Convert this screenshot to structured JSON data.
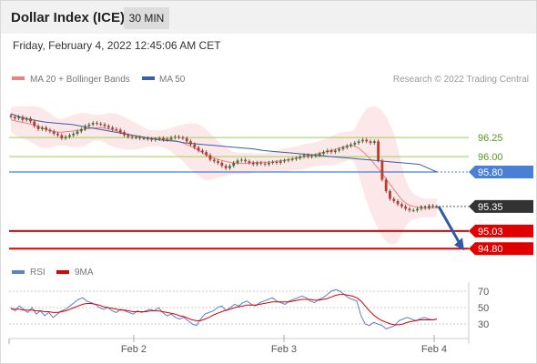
{
  "header": {
    "title": "Dollar Index (ICE)",
    "timeframe": "30 MIN"
  },
  "datetime": "Friday, February 4, 2022 12:45:06 AM CET",
  "colors": {
    "bollinger": "#f08080",
    "ma50": "#3b5ea8",
    "resistance": "#9acd55",
    "pivot": "#4a7fd6",
    "support": "#e00000",
    "price_label": "#333333",
    "arrow": "#2e5aa8",
    "rsi": "#5a7fd6",
    "rsi_ma": "#e00000",
    "candle_up": "#3a7a2a",
    "candle_down": "#c0392b"
  },
  "chart_data": [
    {
      "type": "candlestick",
      "legend": [
        "MA 20 + Bollinger Bands",
        "MA 50"
      ],
      "credit": "Research © 2022 Trading Central",
      "x_ticks": [
        "Feb 2",
        "Feb 3",
        "Feb 4"
      ],
      "levels": [
        {
          "value": 96.25,
          "label": "96.25",
          "kind": "resistance"
        },
        {
          "value": 96.0,
          "label": "96.00",
          "kind": "resistance"
        },
        {
          "value": 95.8,
          "label": "95.80",
          "kind": "pivot"
        },
        {
          "value": 95.35,
          "label": "95.35",
          "kind": "last"
        },
        {
          "value": 95.03,
          "label": "95.03",
          "kind": "support"
        },
        {
          "value": 94.8,
          "label": "94.80",
          "kind": "support"
        }
      ],
      "close": [
        96.52,
        96.5,
        96.52,
        96.48,
        96.5,
        96.46,
        96.4,
        96.36,
        96.38,
        96.35,
        96.33,
        96.3,
        96.28,
        96.24,
        96.26,
        96.28,
        96.3,
        96.33,
        96.36,
        96.4,
        96.42,
        96.44,
        96.43,
        96.42,
        96.4,
        96.38,
        96.36,
        96.35,
        96.32,
        96.28,
        96.26,
        96.25,
        96.25,
        96.24,
        96.24,
        96.23,
        96.22,
        96.23,
        96.24,
        96.22,
        96.23,
        96.25,
        96.26,
        96.25,
        96.24,
        96.2,
        96.16,
        96.12,
        96.08,
        96.06,
        96.02,
        95.96,
        95.94,
        95.92,
        95.88,
        95.85,
        95.88,
        95.92,
        95.95,
        95.96,
        95.94,
        95.92,
        95.9,
        95.92,
        95.91,
        95.9,
        95.92,
        95.93,
        95.92,
        95.94,
        95.95,
        95.96,
        95.97,
        95.98,
        96.0,
        96.02,
        96.0,
        96.01,
        96.02,
        96.04,
        96.06,
        96.08,
        96.06,
        96.08,
        96.1,
        96.12,
        96.14,
        96.16,
        96.18,
        96.2,
        96.22,
        96.2,
        96.18,
        96.2,
        95.95,
        95.7,
        95.55,
        95.45,
        95.42,
        95.38,
        95.35,
        95.32,
        95.3,
        95.3,
        95.32,
        95.34,
        95.33,
        95.36,
        95.35,
        95.35
      ],
      "ma50": [
        96.56,
        96.52,
        96.49,
        96.47,
        96.45,
        96.44,
        96.43,
        96.42,
        96.4,
        96.38,
        96.36,
        96.34,
        96.32,
        96.3,
        96.28,
        96.26,
        96.24,
        96.22,
        96.21,
        96.2,
        96.18,
        96.17,
        96.16,
        96.15,
        96.14,
        96.13,
        96.12,
        96.11,
        96.1,
        96.08,
        96.07,
        96.06,
        96.05,
        96.04,
        96.03,
        96.02,
        96.01,
        96.0,
        95.99,
        95.98,
        95.97,
        95.96,
        95.95,
        95.94,
        95.93,
        95.92,
        95.91,
        95.9,
        95.85,
        95.8
      ],
      "rsi_legend": [
        "RSI",
        "9MA"
      ],
      "rsi_ticks": [
        70,
        50,
        30
      ],
      "rsi": [
        50,
        46,
        52,
        48,
        44,
        50,
        42,
        46,
        40,
        44,
        38,
        42,
        46,
        48,
        52,
        56,
        60,
        62,
        58,
        56,
        54,
        50,
        48,
        50,
        46,
        44,
        48,
        46,
        44,
        42,
        46,
        44,
        46,
        48,
        46,
        50,
        44,
        40,
        42,
        38,
        36,
        38,
        34,
        30,
        28,
        36,
        42,
        44,
        46,
        50,
        52,
        46,
        50,
        54,
        52,
        56,
        58,
        54,
        52,
        56,
        58,
        60,
        62,
        58,
        56,
        54,
        58,
        60,
        62,
        64,
        62,
        58,
        56,
        60,
        62,
        66,
        70,
        72,
        70,
        66,
        62,
        60,
        58,
        40,
        30,
        28,
        32,
        30,
        28,
        24,
        26,
        28,
        34,
        36,
        38,
        36,
        34,
        36,
        38,
        36,
        35,
        36
      ],
      "rsi_ma": [
        48,
        48,
        48,
        47,
        47,
        47,
        46,
        46,
        45,
        45,
        44,
        44,
        45,
        46,
        48,
        50,
        52,
        54,
        55,
        55,
        54,
        53,
        51,
        50,
        49,
        48,
        47,
        47,
        46,
        45,
        45,
        45,
        45,
        46,
        46,
        46,
        45,
        44,
        43,
        42,
        40,
        39,
        37,
        35,
        34,
        34,
        36,
        38,
        41,
        43,
        45,
        47,
        48,
        50,
        51,
        52,
        53,
        53,
        53,
        54,
        55,
        56,
        57,
        57,
        57,
        57,
        57,
        58,
        59,
        60,
        60,
        60,
        59,
        59,
        60,
        61,
        63,
        65,
        66,
        66,
        65,
        64,
        62,
        58,
        52,
        46,
        41,
        37,
        34,
        32,
        30,
        29,
        29,
        30,
        32,
        33,
        34,
        35,
        35,
        35,
        35,
        36
      ]
    }
  ]
}
